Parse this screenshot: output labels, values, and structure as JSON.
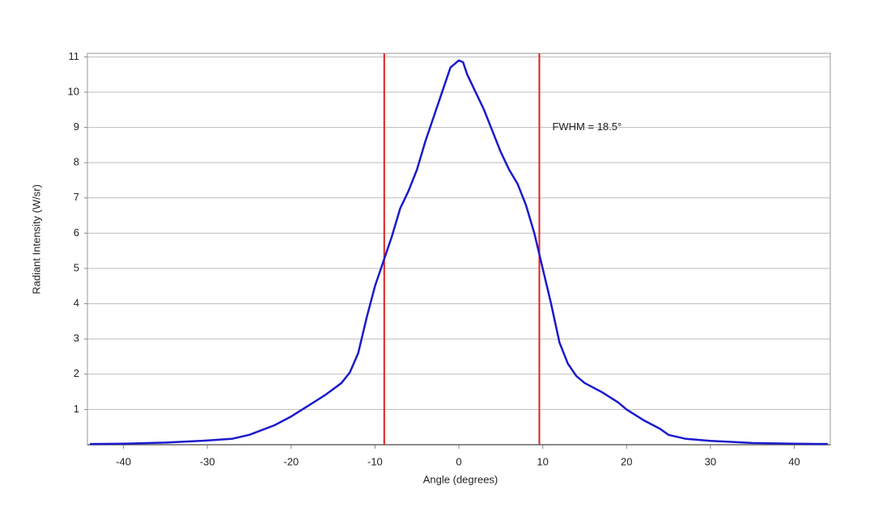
{
  "chart_data": {
    "type": "line",
    "xlabel": "Angle (degrees)",
    "ylabel": "Radiant Intensity (W/sr)",
    "annotation": "FWHM = 18.5°",
    "x": [
      -44,
      -40,
      -35,
      -30,
      -27,
      -25,
      -22,
      -20,
      -18,
      -17,
      -16,
      -14,
      -13,
      -12,
      -11,
      -10,
      -9,
      -8,
      -7,
      -6,
      -5,
      -4,
      -3,
      -2,
      -1,
      0,
      0.5,
      1,
      2,
      3,
      4,
      5,
      6,
      7,
      8,
      9,
      10,
      11,
      12,
      13,
      14,
      15,
      17,
      19,
      20,
      22,
      24,
      25,
      27,
      30,
      35,
      40,
      44
    ],
    "series": [
      {
        "name": "Radiant Intensity",
        "color": "#1a1acc",
        "values": [
          0.02,
          0.03,
          0.06,
          0.12,
          0.17,
          0.28,
          0.55,
          0.8,
          1.1,
          1.25,
          1.4,
          1.75,
          2.05,
          2.6,
          3.6,
          4.5,
          5.2,
          5.9,
          6.7,
          7.2,
          7.8,
          8.6,
          9.3,
          10.0,
          10.7,
          10.9,
          10.85,
          10.5,
          10.0,
          9.5,
          8.9,
          8.3,
          7.8,
          7.4,
          6.8,
          6.0,
          5.0,
          4.0,
          2.9,
          2.3,
          1.95,
          1.75,
          1.5,
          1.2,
          1.0,
          0.7,
          0.45,
          0.28,
          0.17,
          0.11,
          0.05,
          0.03,
          0.02
        ]
      }
    ],
    "vlines": [
      -8.9,
      9.6
    ],
    "vline_color": "#e02020",
    "xlim": [
      -44.3,
      44.3
    ],
    "ylim": [
      0,
      11.1
    ],
    "xticks": [
      -40,
      -30,
      -20,
      -10,
      0,
      10,
      20,
      30,
      40
    ],
    "yticks": [
      1,
      2,
      3,
      4,
      5,
      6,
      7,
      8,
      9,
      10,
      11
    ],
    "grid": true
  }
}
